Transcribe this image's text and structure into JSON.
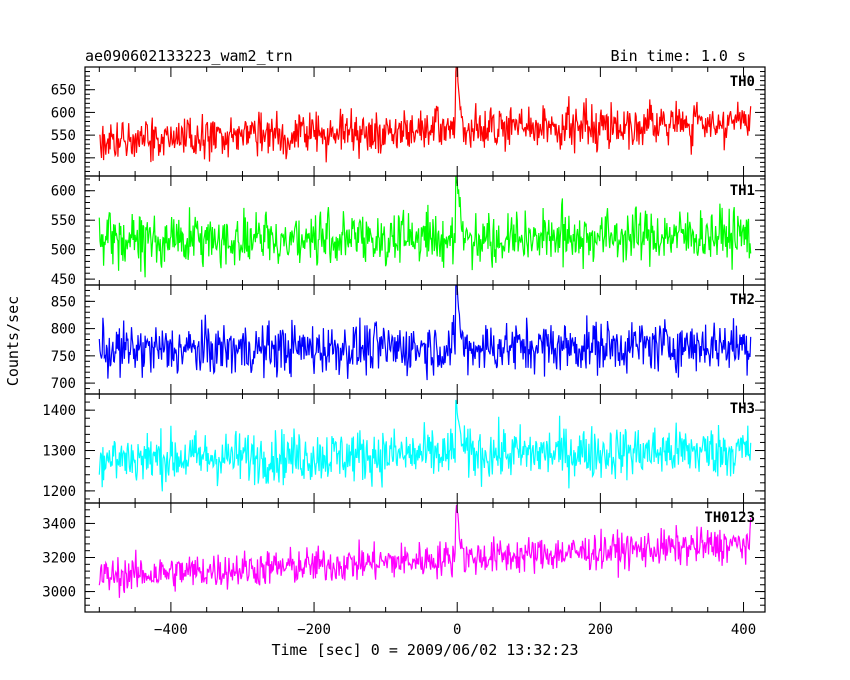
{
  "header": {
    "left_title": "ae090602133223_wam2_trn",
    "right_title": "Bin time: 1.0 s"
  },
  "chart_data": {
    "type": "line",
    "title": "ae090602133223_wam2_trn",
    "subtitle": "Bin time: 1.0 s",
    "xlabel": "Time [sec] 0 = 2009/06/02 13:32:23",
    "ylabel": "Counts/sec",
    "xlim": [
      -520,
      430
    ],
    "x_ticks": [
      -400,
      -200,
      0,
      200,
      400
    ],
    "x_tick_labels": [
      "−400",
      "−200",
      "0",
      "200",
      "400"
    ],
    "bin_time_s": 1.0,
    "data_range_x": [
      -500,
      410
    ],
    "grid": false,
    "panels": [
      {
        "name": "TH0",
        "color": "#ff0000",
        "ylim": [
          460,
          700
        ],
        "y_ticks": [
          500,
          550,
          600,
          650
        ],
        "baseline_start": 540,
        "baseline_end": 580,
        "noise_amplitude": 40,
        "peak_value": 705
      },
      {
        "name": "TH1",
        "color": "#00ff00",
        "ylim": [
          440,
          625
        ],
        "y_ticks": [
          450,
          500,
          550,
          600
        ],
        "baseline_start": 515,
        "baseline_end": 525,
        "noise_amplitude": 38,
        "peak_value": 630
      },
      {
        "name": "TH2",
        "color": "#0000ff",
        "ylim": [
          680,
          880
        ],
        "y_ticks": [
          700,
          750,
          800,
          850
        ],
        "baseline_start": 760,
        "baseline_end": 770,
        "noise_amplitude": 40,
        "peak_value": 875
      },
      {
        "name": "TH3",
        "color": "#00ffff",
        "ylim": [
          1170,
          1440
        ],
        "y_ticks": [
          1200,
          1300,
          1400
        ],
        "baseline_start": 1280,
        "baseline_end": 1300,
        "noise_amplitude": 55,
        "peak_value": 1420
      },
      {
        "name": "TH0123",
        "color": "#ff00ff",
        "ylim": [
          2880,
          3520
        ],
        "y_ticks": [
          3000,
          3200,
          3400
        ],
        "baseline_start": 3090,
        "baseline_end": 3280,
        "noise_amplitude": 90,
        "peak_value": 3500
      }
    ]
  }
}
